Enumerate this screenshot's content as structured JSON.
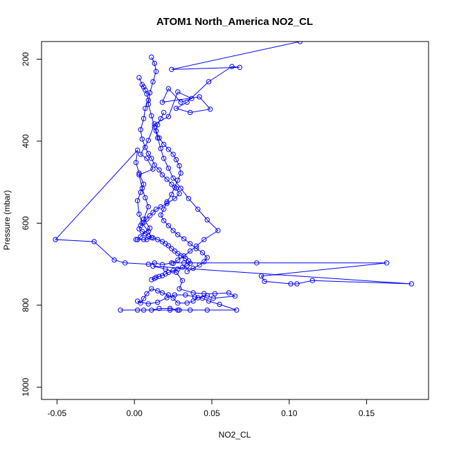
{
  "chart_data": {
    "type": "line",
    "title": "ATOM1 North_America NO2_CL",
    "xlabel": "NO2_CL",
    "ylabel": "Pressure (mbar)",
    "xlim": [
      -0.06,
      0.19
    ],
    "ylim": [
      1030,
      157
    ],
    "y_reversed": true,
    "x_ticks": [
      -0.05,
      0.0,
      0.05,
      0.1,
      0.15
    ],
    "x_tick_labels": [
      "-0.05",
      "0.00",
      "0.05",
      "0.10",
      "0.15"
    ],
    "y_ticks": [
      200,
      400,
      600,
      800,
      1000
    ],
    "y_tick_labels": [
      "200",
      "400",
      "600",
      "800",
      "1000"
    ],
    "grid": false,
    "series": [
      {
        "color": "#0000ff",
        "marker": "open-circle",
        "x": [
          0.107,
          0.024,
          0.068,
          0.063,
          0.048,
          0.034,
          0.027,
          0.036,
          0.049,
          0.042,
          0.018,
          0.022,
          0.03,
          0.037,
          0.028,
          0.022,
          0.013,
          0.009,
          0.004,
          0.008,
          0.012,
          0.003,
          0.005,
          0.007,
          0.009,
          0.006,
          0.01,
          0.004,
          0.002,
          0.001,
          0.006,
          0.008,
          0.011,
          0.009,
          0.005,
          0.003,
          0.002,
          0.004,
          0.006,
          0.003,
          0.001,
          0.002,
          -0.051,
          -0.026,
          -0.013,
          -0.006,
          0.009,
          0.013,
          0.018,
          0.024,
          0.032,
          0.079,
          0.163,
          0.082,
          0.084,
          0.101,
          0.105,
          0.115,
          0.179,
          0.012,
          0.02,
          0.027,
          0.031,
          0.029,
          0.038,
          0.045,
          0.052,
          0.061,
          0.065,
          0.051,
          0.047,
          0.041,
          0.038,
          0.034,
          0.028,
          0.025,
          0.022,
          0.018,
          0.015,
          0.011,
          0.008,
          0.006,
          0.004,
          0.002,
          0.009,
          0.015,
          0.021,
          0.026,
          0.033,
          0.039,
          0.044,
          0.048,
          0.055,
          0.066,
          0.047,
          0.036,
          0.029,
          0.023,
          0.016,
          0.011,
          0.006,
          0.002,
          -0.009,
          0.023,
          0.028
        ],
        "y": [
          157,
          225,
          220,
          218,
          255,
          305,
          320,
          330,
          322,
          292,
          305,
          272,
          305,
          296,
          280,
          340,
          358,
          398,
          432,
          442,
          468,
          482,
          515,
          538,
          560,
          590,
          612,
          633,
          640,
          640,
          640,
          640,
          635,
          620,
          600,
          578,
          545,
          525,
          505,
          478,
          452,
          422,
          640,
          645,
          690,
          697,
          700,
          697,
          701,
          697,
          697,
          697,
          697,
          729,
          742,
          748,
          748,
          740,
          748,
          705,
          712,
          720,
          740,
          760,
          770,
          772,
          772,
          770,
          778,
          783,
          777,
          782,
          790,
          795,
          795,
          783,
          775,
          770,
          765,
          760,
          772,
          784,
          795,
          790,
          797,
          793,
          782,
          775,
          775,
          780,
          783,
          790,
          798,
          812,
          812,
          812,
          812,
          808,
          808,
          812,
          812,
          812,
          812,
          812,
          812
        ]
      },
      {
        "color": "#0000ff",
        "marker": "open-circle",
        "x": [
          0.003,
          0.005,
          0.006,
          0.007,
          0.008,
          0.009,
          0.007,
          0.006,
          0.004,
          0.005,
          0.007,
          0.009,
          0.011,
          0.013,
          0.016,
          0.018,
          0.021,
          0.024,
          0.027,
          0.029,
          0.026,
          0.021,
          0.017,
          0.014,
          0.012,
          0.01,
          0.008,
          0.006,
          0.004,
          0.003,
          0.005,
          0.007,
          0.009,
          0.012,
          0.015,
          0.018,
          0.02,
          0.022,
          0.024,
          0.026,
          0.028,
          0.03,
          0.033,
          0.035,
          0.036,
          0.034,
          0.031,
          0.028,
          0.025,
          0.022,
          0.02,
          0.018,
          0.016,
          0.014,
          0.013,
          0.011
        ],
        "y": [
          245,
          262,
          268,
          275,
          285,
          300,
          320,
          345,
          372,
          395,
          415,
          430,
          442,
          458,
          470,
          482,
          493,
          505,
          515,
          528,
          540,
          552,
          560,
          566,
          574,
          582,
          590,
          598,
          606,
          614,
          620,
          626,
          632,
          636,
          640,
          645,
          650,
          655,
          662,
          668,
          674,
          680,
          686,
          692,
          698,
          704,
          708,
          712,
          716,
          720,
          724,
          728,
          730,
          732,
          735,
          738
        ]
      },
      {
        "color": "#0000ff",
        "marker": "open-circle",
        "x": [
          0.019,
          0.017,
          0.015,
          0.014,
          0.016,
          0.019,
          0.022,
          0.025,
          0.027,
          0.029,
          0.03,
          0.028,
          0.026,
          0.024,
          0.021,
          0.019,
          0.017,
          0.019,
          0.022,
          0.025,
          0.028,
          0.032,
          0.036,
          0.04,
          0.044,
          0.047,
          0.045,
          0.042,
          0.038,
          0.034
        ],
        "y": [
          330,
          345,
          360,
          375,
          392,
          408,
          420,
          432,
          445,
          460,
          478,
          495,
          512,
          530,
          548,
          566,
          580,
          594,
          606,
          618,
          628,
          638,
          650,
          662,
          672,
          684,
          694,
          702,
          710,
          718
        ]
      },
      {
        "color": "#0000ff",
        "marker": "open-circle",
        "x": [
          0.011,
          0.013,
          0.014,
          0.012,
          0.01,
          0.009,
          0.011,
          0.013,
          0.015,
          0.017,
          0.019,
          0.022,
          0.025,
          0.03,
          0.035,
          0.041,
          0.047,
          0.054,
          0.045,
          0.04,
          0.036,
          0.032,
          0.028,
          0.025
        ],
        "y": [
          195,
          210,
          230,
          255,
          282,
          310,
          338,
          365,
          392,
          418,
          442,
          466,
          490,
          515,
          540,
          566,
          592,
          618,
          640,
          656,
          668,
          680,
          690,
          698
        ]
      }
    ]
  }
}
